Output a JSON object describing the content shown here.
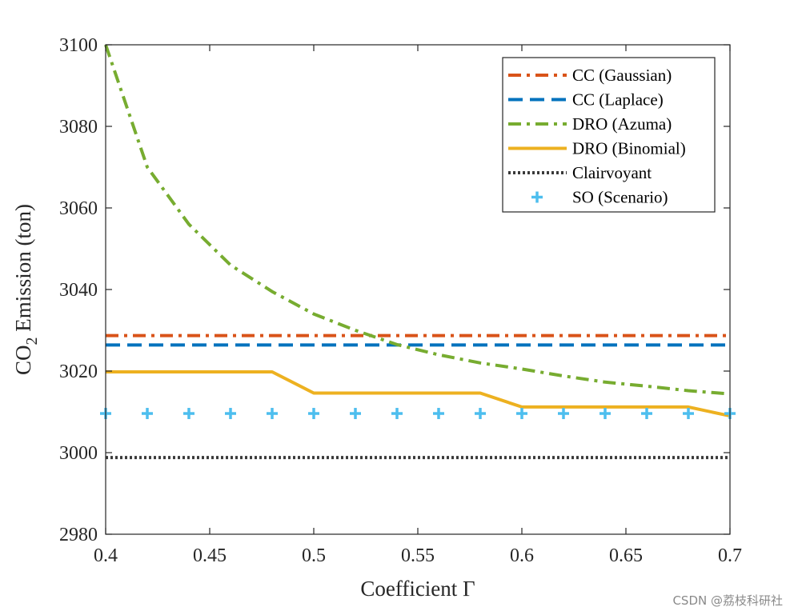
{
  "chart_data": {
    "type": "line",
    "xlabel": "Coefficient Γ",
    "ylabel_main": "CO",
    "ylabel_sub": "2",
    "ylabel_rest": " Emission (ton)",
    "xlim": [
      0.4,
      0.7
    ],
    "ylim": [
      2980,
      3100
    ],
    "xticks": [
      0.4,
      0.45,
      0.5,
      0.55,
      0.6,
      0.65,
      0.7
    ],
    "xtick_labels": [
      "0.4",
      "0.45",
      "0.5",
      "0.55",
      "0.6",
      "0.65",
      "0.7"
    ],
    "yticks": [
      2980,
      3000,
      3020,
      3040,
      3060,
      3080,
      3100
    ],
    "ytick_labels": [
      "2980",
      "3000",
      "3020",
      "3040",
      "3060",
      "3080",
      "3100"
    ],
    "grid": false,
    "legend_position": "top-right",
    "series": [
      {
        "name": "CC (Gaussian)",
        "style": "dashdot",
        "color": "#d95319",
        "x": [
          0.4,
          0.7
        ],
        "y": [
          3028.7,
          3028.7
        ]
      },
      {
        "name": "CC (Laplace)",
        "style": "dashed",
        "color": "#0072bd",
        "x": [
          0.4,
          0.7
        ],
        "y": [
          3026.4,
          3026.4
        ]
      },
      {
        "name": "DRO (Azuma)",
        "style": "dashdot",
        "color": "#77ac30",
        "x": [
          0.4,
          0.42,
          0.44,
          0.46,
          0.48,
          0.5,
          0.52,
          0.54,
          0.56,
          0.58,
          0.6,
          0.62,
          0.64,
          0.66,
          0.68,
          0.7
        ],
        "y": [
          3100,
          3070,
          3056,
          3046,
          3039.5,
          3034,
          3030,
          3026.5,
          3024,
          3022,
          3020.5,
          3018.8,
          3017.3,
          3016.3,
          3015.2,
          3014.4
        ]
      },
      {
        "name": "DRO (Binomial)",
        "style": "solid",
        "color": "#edb120",
        "x": [
          0.4,
          0.48,
          0.5,
          0.58,
          0.6,
          0.68,
          0.7
        ],
        "y": [
          3019.8,
          3019.8,
          3014.6,
          3014.6,
          3011.2,
          3011.2,
          3009.0
        ]
      },
      {
        "name": "Clairvoyant",
        "style": "dotted",
        "color": "#3a3a3a",
        "x": [
          0.4,
          0.7
        ],
        "y": [
          2998.8,
          2998.8
        ]
      },
      {
        "name": "SO (Scenario)",
        "style": "markers",
        "marker": "+",
        "color": "#4dbeee",
        "x": [
          0.4,
          0.42,
          0.44,
          0.46,
          0.48,
          0.5,
          0.52,
          0.54,
          0.56,
          0.58,
          0.6,
          0.62,
          0.64,
          0.66,
          0.68,
          0.7
        ],
        "y": [
          3009.6,
          3009.6,
          3009.6,
          3009.6,
          3009.6,
          3009.6,
          3009.6,
          3009.6,
          3009.6,
          3009.6,
          3009.6,
          3009.6,
          3009.6,
          3009.6,
          3009.6,
          3009.6
        ]
      }
    ]
  },
  "watermark": "CSDN @荔枝科研社"
}
